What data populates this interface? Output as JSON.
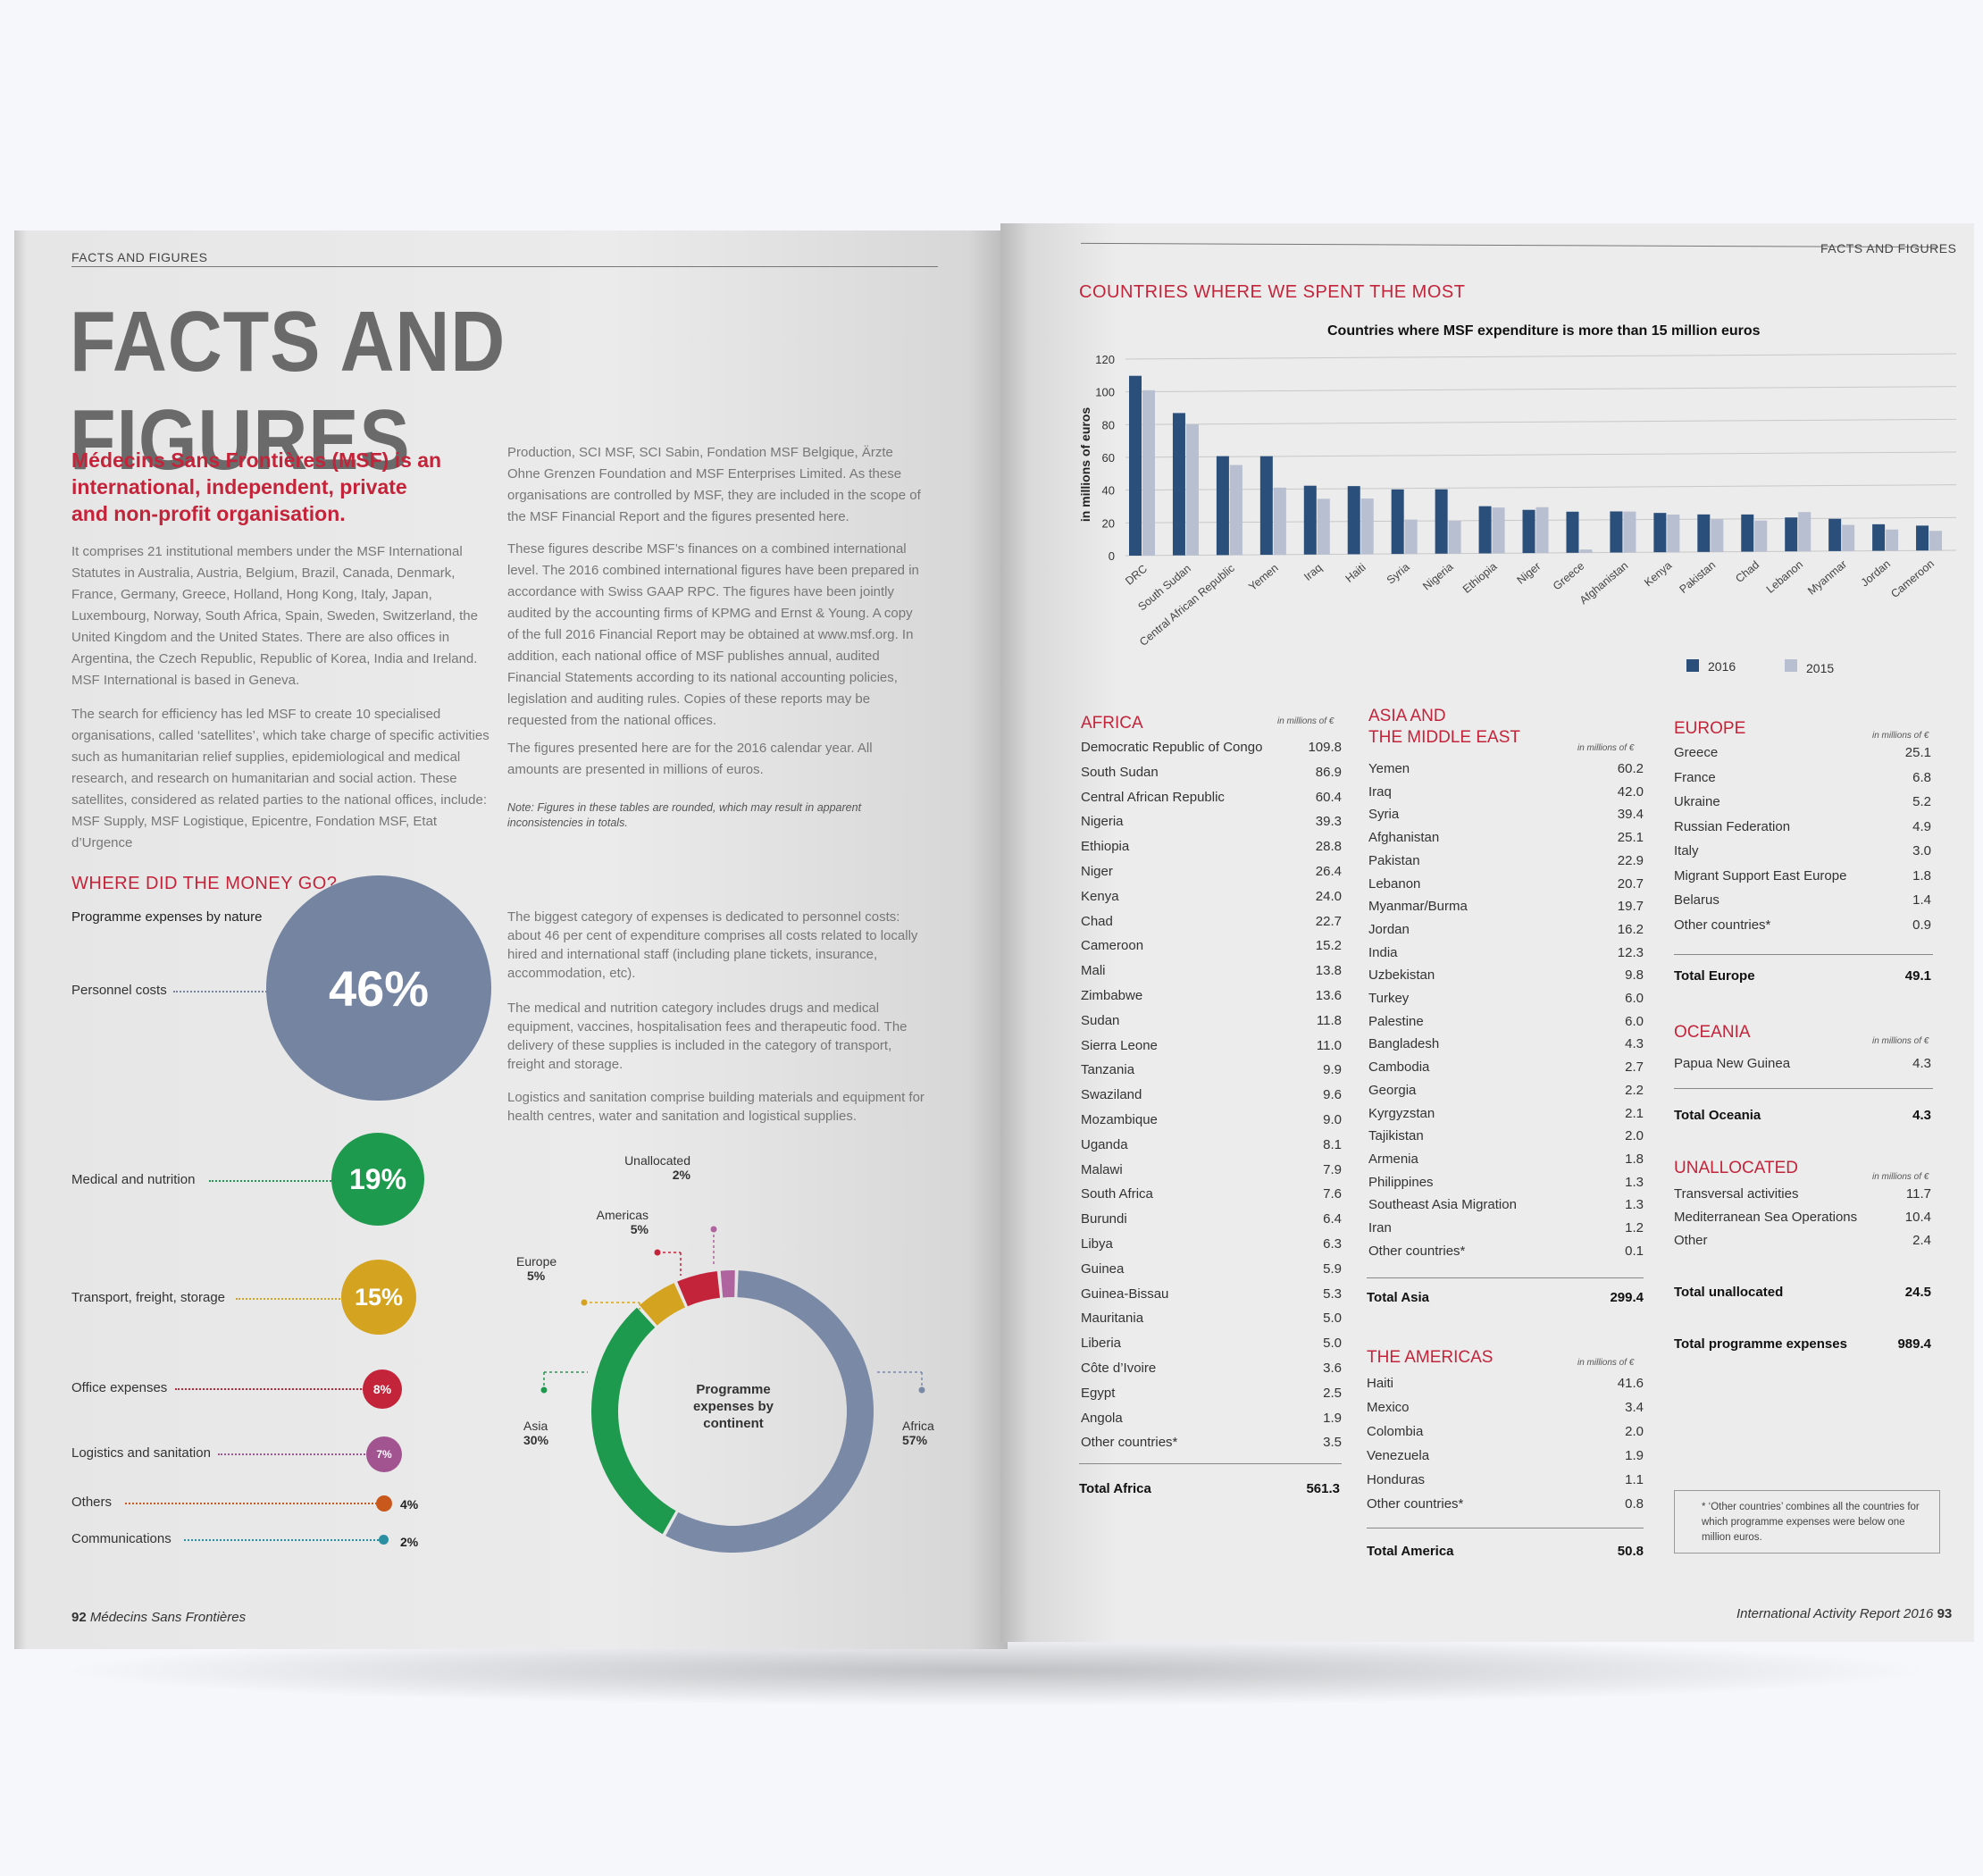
{
  "left": {
    "running_head": "FACTS AND FIGURES",
    "title": "FACTS AND FIGURES",
    "lead": "Médecins Sans Frontières (MSF) is an international, independent, private and non-profit organisation.",
    "col1_p1": "It comprises 21 institutional members under the MSF International Statutes in Australia, Austria, Belgium, Brazil, Canada, Denmark, France, Germany, Greece, Holland, Hong Kong, Italy, Japan, Luxembourg, Norway, South Africa, Spain, Sweden, Switzerland, the United Kingdom and the United States. There are also offices in Argentina, the Czech Republic, Republic of Korea, India and Ireland. MSF International is based in Geneva.",
    "col1_p2": "The search for efficiency has led MSF to create 10 specialised organisations, called ‘satellites’, which take charge of specific activities such as humanitarian relief supplies, epidemiological and medical research, and research on humanitarian and social action. These satellites, considered as related parties to the national offices, include: MSF Supply, MSF Logistique, Epicentre, Fondation MSF, Etat d’Urgence",
    "col2_p1": "Production, SCI MSF, SCI Sabin, Fondation MSF Belgique, Ärzte Ohne Grenzen Foundation and MSF Enterprises Limited. As these organisations are controlled by MSF, they are included in the scope of the MSF Financial Report and the figures presented here.",
    "col2_p2": "These figures describe MSF’s finances on a combined international level. The 2016 combined international figures have been prepared in accordance with Swiss GAAP RPC. The figures have been jointly audited by the accounting firms of KPMG and Ernst & Young. A copy of the full 2016 Financial Report may be obtained at www.msf.org. In addition, each national office of MSF publishes annual, audited Financial Statements according to its national accounting policies, legislation and auditing rules. Copies of these reports may be requested from the national offices.",
    "col2_p3": "The figures presented here are for the 2016 calendar year. All amounts are presented in millions of euros.",
    "note": "Note: Figures in these tables are rounded, which may result in apparent inconsistencies in totals.",
    "money_head": "WHERE DID THE MONEY GO?",
    "nature_head": "Programme expenses by nature",
    "nature_items": [
      {
        "label": "Personnel costs",
        "pct": "46%",
        "value": 46,
        "color": "#7484a1"
      },
      {
        "label": "Medical and nutrition",
        "pct": "19%",
        "value": 19,
        "color": "#1e9a4e"
      },
      {
        "label": "Transport, freight, storage",
        "pct": "15%",
        "value": 15,
        "color": "#d4a320"
      },
      {
        "label": "Office expenses",
        "pct": "8%",
        "value": 8,
        "color": "#c4243a"
      },
      {
        "label": "Logistics and sanitation",
        "pct": "7%",
        "value": 7,
        "color": "#a15490"
      },
      {
        "label": "Others",
        "pct": "4%",
        "value": 4,
        "color": "#c9581c"
      },
      {
        "label": "Communications",
        "pct": "2%",
        "value": 2,
        "color": "#2a8fa3"
      }
    ],
    "exp_p1": "The biggest category of expenses is dedicated to personnel costs: about 46 per cent of expenditure comprises all costs related to locally hired and international staff (including plane tickets, insurance, accommodation, etc).",
    "exp_p2": "The medical and nutrition category includes drugs and medical equipment, vaccines, hospitalisation fees and therapeutic food. The delivery of these supplies is included in the category of transport, freight and storage.",
    "exp_p3": "Logistics and sanitation comprise building materials and equipment for health centres, water and sanitation and logistical supplies.",
    "donut_center": "Programme expenses by continent",
    "continents": [
      {
        "name": "Africa",
        "pct": "57%",
        "value": 57,
        "color": "#7a8aa6"
      },
      {
        "name": "Asia",
        "pct": "30%",
        "value": 30,
        "color": "#1e9a4e"
      },
      {
        "name": "Europe",
        "pct": "5%",
        "value": 5,
        "color": "#d4a320"
      },
      {
        "name": "Americas",
        "pct": "5%",
        "value": 5,
        "color": "#c4243a"
      },
      {
        "name": "Unallocated",
        "pct": "2%",
        "value": 2,
        "color": "#b0649f"
      }
    ],
    "folio_num": "92",
    "folio_text": "Médecins Sans Frontières"
  },
  "right": {
    "running_head": "FACTS AND FIGURES",
    "section_head": "COUNTRIES WHERE WE SPENT THE MOST",
    "chart_data": {
      "type": "bar",
      "title": "Countries where MSF expenditure is more than 15 million euros",
      "ylabel": "in millions of euros",
      "ylim": [
        0,
        120
      ],
      "yticks": [
        0,
        20,
        40,
        60,
        80,
        100,
        120
      ],
      "categories": [
        "DRC",
        "South Sudan",
        "Central African Republic",
        "Yemen",
        "Iraq",
        "Haiti",
        "Syria",
        "Nigeria",
        "Ethiopia",
        "Niger",
        "Greece",
        "Afghanistan",
        "Kenya",
        "Pakistan",
        "Chad",
        "Lebanon",
        "Myanmar",
        "Jordan",
        "Cameroon"
      ],
      "series": [
        {
          "name": "2016",
          "color": "#2a4f7a",
          "values": [
            109.8,
            86.9,
            60.4,
            60.2,
            42.0,
            41.6,
            39.4,
            39.3,
            28.8,
            26.4,
            25.1,
            25.1,
            24.0,
            22.9,
            22.7,
            20.7,
            19.7,
            16.2,
            15.2
          ]
        },
        {
          "name": "2015",
          "color": "#b8bfd0",
          "values": [
            101,
            80,
            55,
            41,
            34,
            34,
            21,
            20,
            28,
            28,
            2,
            25,
            23,
            20,
            19,
            24,
            16,
            13,
            12
          ]
        }
      ],
      "grid": true,
      "legend": "bottom-right"
    },
    "africa": {
      "head": "AFRICA",
      "unit": "in millions of €",
      "rows": [
        [
          "Democratic Republic of Congo",
          "109.8"
        ],
        [
          "South Sudan",
          "86.9"
        ],
        [
          "Central African Republic",
          "60.4"
        ],
        [
          "Nigeria",
          "39.3"
        ],
        [
          "Ethiopia",
          "28.8"
        ],
        [
          "Niger",
          "26.4"
        ],
        [
          "Kenya",
          "24.0"
        ],
        [
          "Chad",
          "22.7"
        ],
        [
          "Cameroon",
          "15.2"
        ],
        [
          "Mali",
          "13.8"
        ],
        [
          "Zimbabwe",
          "13.6"
        ],
        [
          "Sudan",
          "11.8"
        ],
        [
          "Sierra Leone",
          "11.0"
        ],
        [
          "Tanzania",
          "9.9"
        ],
        [
          "Swaziland",
          "9.6"
        ],
        [
          "Mozambique",
          "9.0"
        ],
        [
          "Uganda",
          "8.1"
        ],
        [
          "Malawi",
          "7.9"
        ],
        [
          "South Africa",
          "7.6"
        ],
        [
          "Burundi",
          "6.4"
        ],
        [
          "Libya",
          "6.3"
        ],
        [
          "Guinea",
          "5.9"
        ],
        [
          "Guinea-Bissau",
          "5.3"
        ],
        [
          "Mauritania",
          "5.0"
        ],
        [
          "Liberia",
          "5.0"
        ],
        [
          "Côte d’Ivoire",
          "3.6"
        ],
        [
          "Egypt",
          "2.5"
        ],
        [
          "Angola",
          "1.9"
        ],
        [
          "Other countries*",
          "3.5"
        ]
      ],
      "total_label": "Total Africa",
      "total_value": "561.3"
    },
    "asia": {
      "head1": "ASIA AND",
      "head2": "THE MIDDLE EAST",
      "unit": "in millions of €",
      "rows": [
        [
          "Yemen",
          "60.2"
        ],
        [
          "Iraq",
          "42.0"
        ],
        [
          "Syria",
          "39.4"
        ],
        [
          "Afghanistan",
          "25.1"
        ],
        [
          "Pakistan",
          "22.9"
        ],
        [
          "Lebanon",
          "20.7"
        ],
        [
          "Myanmar/Burma",
          "19.7"
        ],
        [
          "Jordan",
          "16.2"
        ],
        [
          "India",
          "12.3"
        ],
        [
          "Uzbekistan",
          "9.8"
        ],
        [
          "Turkey",
          "6.0"
        ],
        [
          "Palestine",
          "6.0"
        ],
        [
          "Bangladesh",
          "4.3"
        ],
        [
          "Cambodia",
          "2.7"
        ],
        [
          "Georgia",
          "2.2"
        ],
        [
          "Kyrgyzstan",
          "2.1"
        ],
        [
          "Tajikistan",
          "2.0"
        ],
        [
          "Armenia",
          "1.8"
        ],
        [
          "Philippines",
          "1.3"
        ],
        [
          "Southeast Asia Migration",
          "1.3"
        ],
        [
          "Iran",
          "1.2"
        ],
        [
          "Other countries*",
          "0.1"
        ]
      ],
      "total_label": "Total Asia",
      "total_value": "299.4"
    },
    "americas": {
      "head": "THE AMERICAS",
      "unit": "in millions of €",
      "rows": [
        [
          "Haiti",
          "41.6"
        ],
        [
          "Mexico",
          "3.4"
        ],
        [
          "Colombia",
          "2.0"
        ],
        [
          "Venezuela",
          "1.9"
        ],
        [
          "Honduras",
          "1.1"
        ],
        [
          "Other countries*",
          "0.8"
        ]
      ],
      "total_label": "Total America",
      "total_value": "50.8"
    },
    "europe": {
      "head": "EUROPE",
      "unit": "in millions of €",
      "rows": [
        [
          "Greece",
          "25.1"
        ],
        [
          "France",
          "6.8"
        ],
        [
          "Ukraine",
          "5.2"
        ],
        [
          "Russian Federation",
          "4.9"
        ],
        [
          "Italy",
          "3.0"
        ],
        [
          "Migrant Support East Europe",
          "1.8"
        ],
        [
          "Belarus",
          "1.4"
        ],
        [
          "Other countries*",
          "0.9"
        ]
      ],
      "total_label": "Total Europe",
      "total_value": "49.1"
    },
    "oceania": {
      "head": "OCEANIA",
      "unit": "in millions of €",
      "rows": [
        [
          "Papua New Guinea",
          "4.3"
        ]
      ],
      "total_label": "Total Oceania",
      "total_value": "4.3"
    },
    "unallocated": {
      "head": "UNALLOCATED",
      "unit": "in millions of €",
      "rows": [
        [
          "Transversal activities",
          "11.7"
        ],
        [
          "Mediterranean Sea Operations",
          "10.4"
        ],
        [
          "Other",
          "2.4"
        ]
      ],
      "total_label": "Total unallocated",
      "total_value": "24.5"
    },
    "programme_total_label": "Total programme expenses",
    "programme_total_value": "989.4",
    "footnote": "* ‘Other countries’ combines all the countries for which programme expenses were below one million euros.",
    "folio_text": "International Activity Report 2016",
    "folio_num": "93"
  }
}
